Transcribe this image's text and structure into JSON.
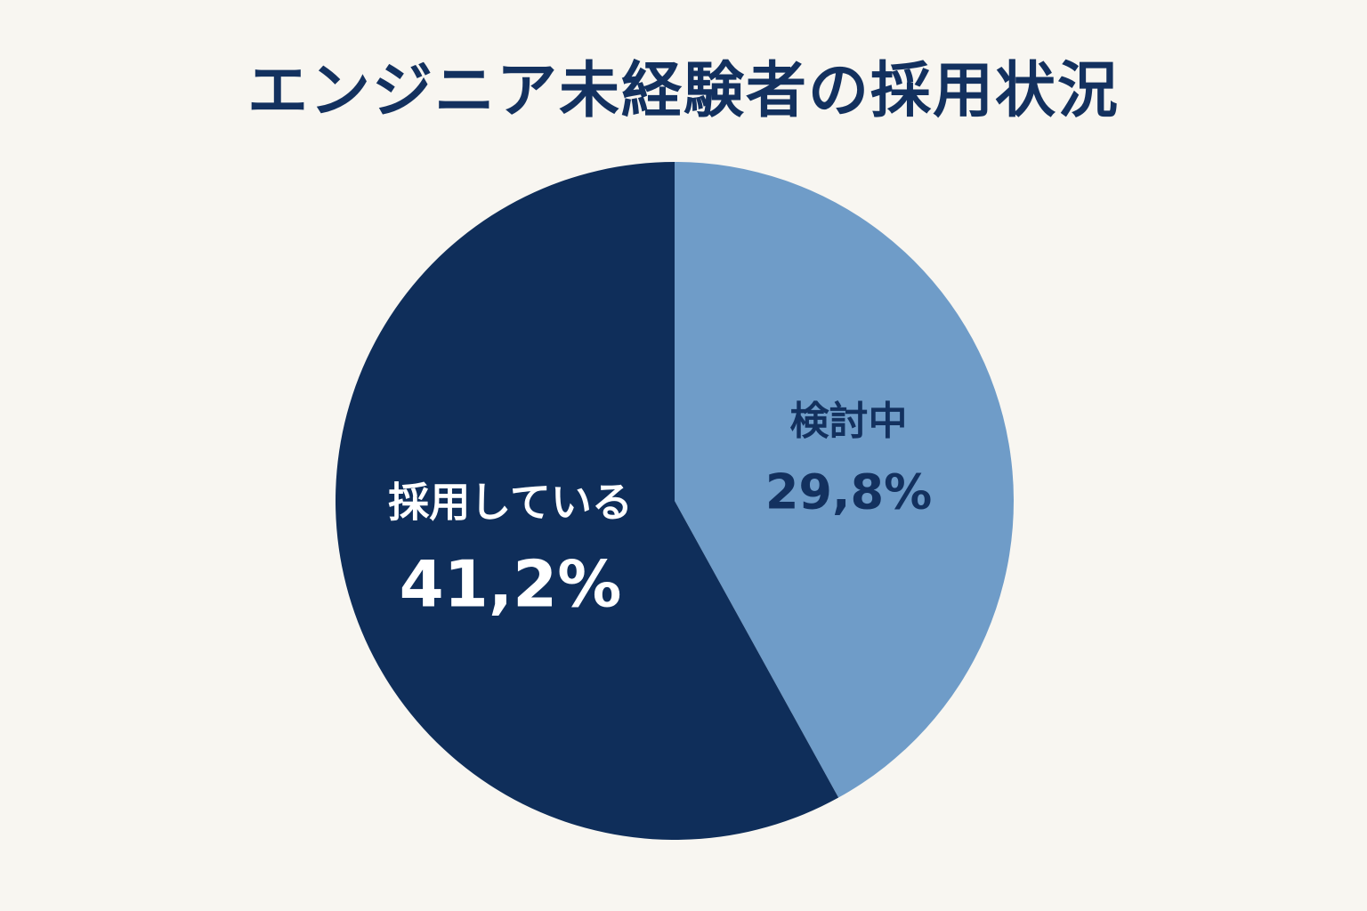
{
  "chart_data": {
    "type": "pie",
    "title": "エンジニア未経験者の採用状況",
    "slices": [
      {
        "label": "検討中",
        "value": 29.8,
        "value_label": "29,8%",
        "color": "#6f9cc8",
        "label_color": "#13315f"
      },
      {
        "label": "採用している",
        "value": 41.2,
        "value_label": "41,2%",
        "color": "#0f2e5a",
        "label_color": "#ffffff"
      }
    ],
    "start": "12 o'clock",
    "direction": "clockwise",
    "legend": "none"
  }
}
